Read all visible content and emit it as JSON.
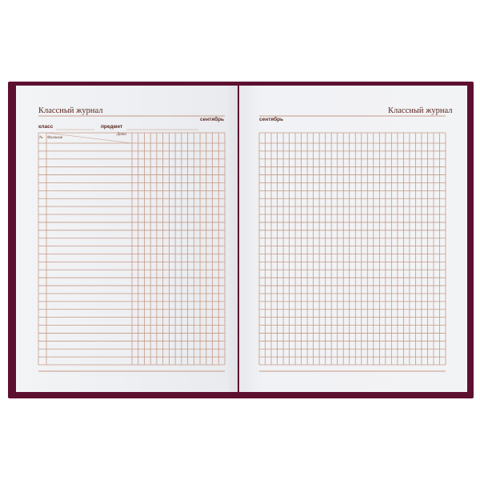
{
  "left_page": {
    "title": "Классный журнал",
    "month": "сентябрь",
    "class_label": "класс",
    "subject_label": "предмет",
    "table": {
      "number_header": "№",
      "name_header": "Фамилия",
      "date_header": "Дата"
    }
  },
  "right_page": {
    "title": "Классный журнал",
    "month": "сентябрь"
  },
  "colors": {
    "cover": "#5e1030",
    "lines": "#c49a86",
    "text": "#5a2a20"
  }
}
